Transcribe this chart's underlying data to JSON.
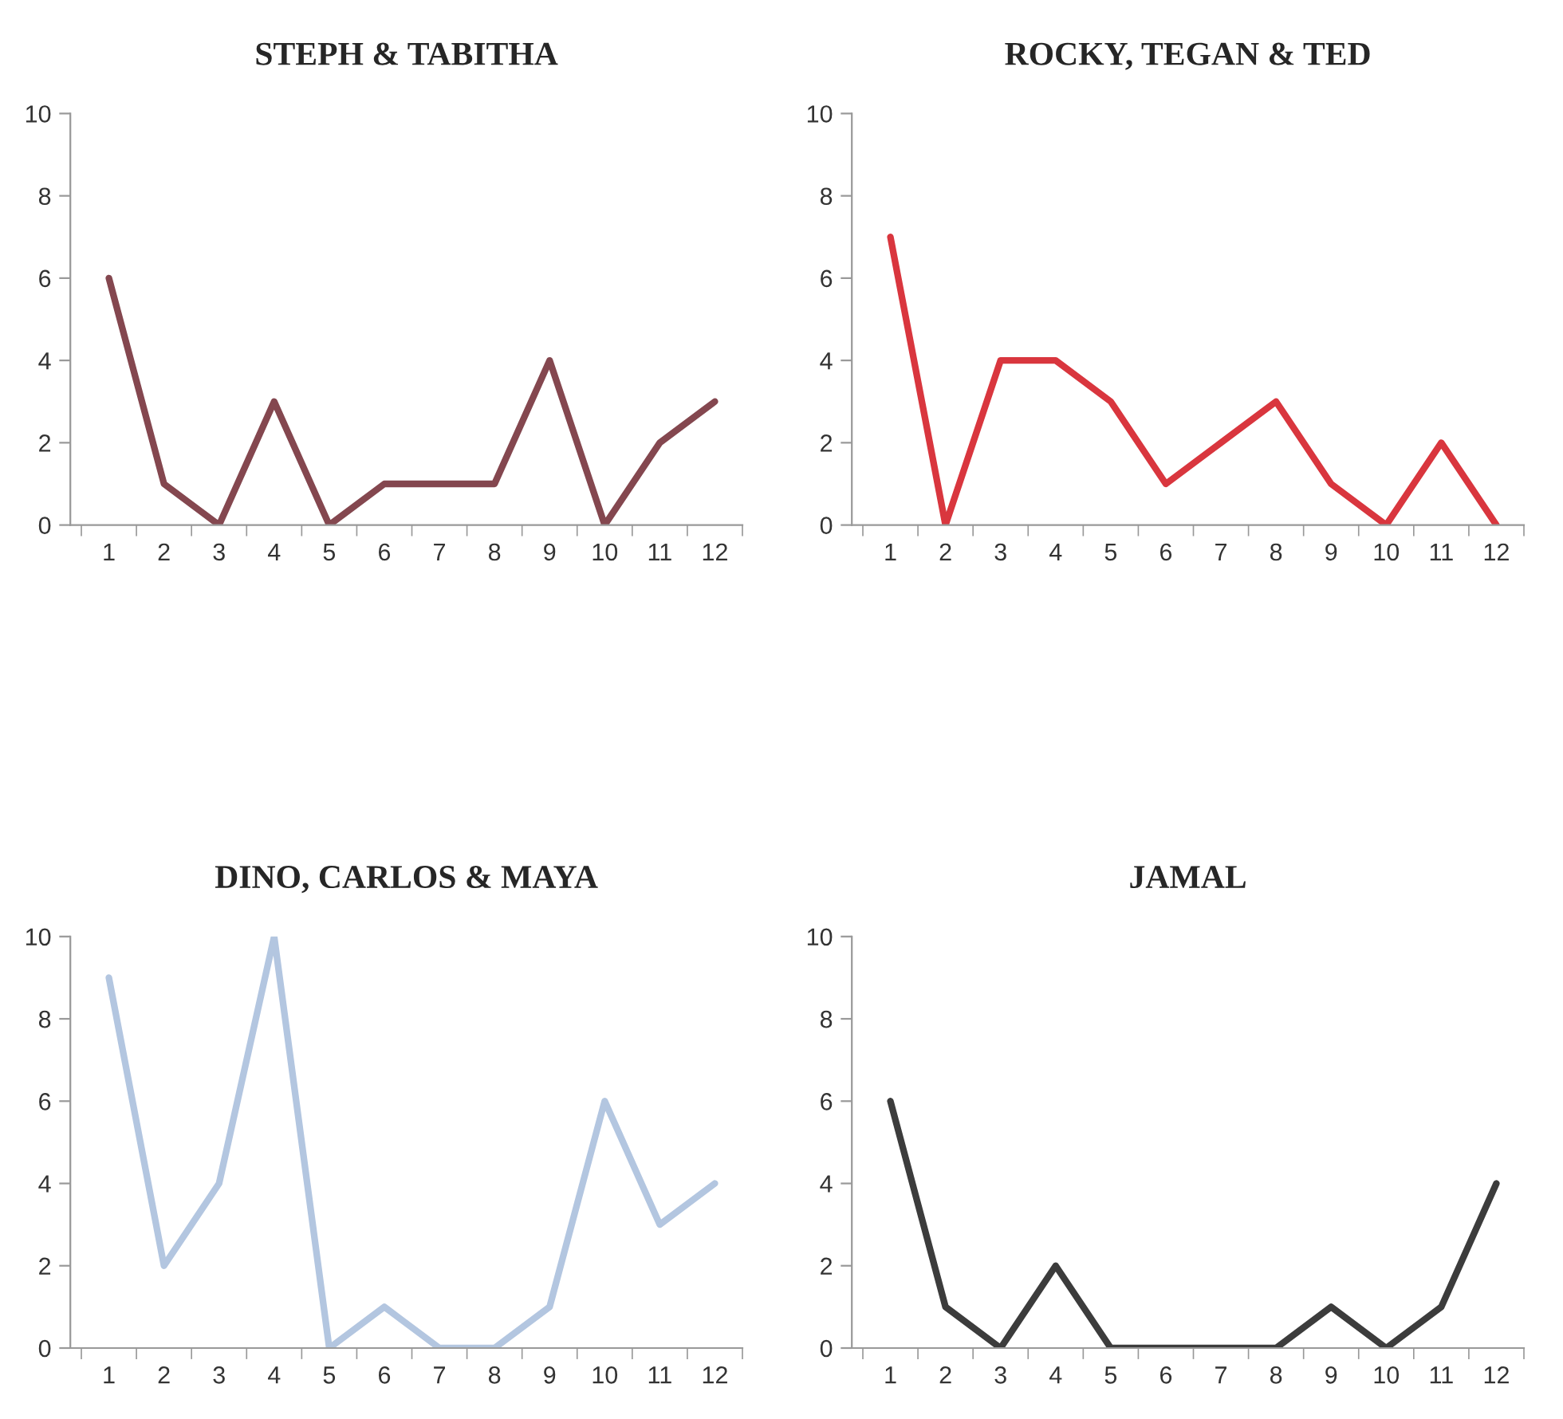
{
  "chart_data": [
    {
      "type": "line",
      "title": "STEPH & TABITHA",
      "categories": [
        "1",
        "2",
        "3",
        "4",
        "5",
        "6",
        "7",
        "8",
        "9",
        "10",
        "11",
        "12"
      ],
      "series": [
        {
          "color": "#84474f",
          "values": [
            6,
            1,
            0,
            3,
            0,
            1,
            1,
            1,
            4,
            0,
            2,
            3
          ]
        }
      ],
      "ylim": [
        0,
        10
      ],
      "yticks": [
        0,
        2,
        4,
        6,
        8,
        10
      ],
      "grid": false,
      "legend": false
    },
    {
      "type": "line",
      "title": "ROCKY, TEGAN & TED",
      "categories": [
        "1",
        "2",
        "3",
        "4",
        "5",
        "6",
        "7",
        "8",
        "9",
        "10",
        "11",
        "12"
      ],
      "series": [
        {
          "color": "#d9363e",
          "values": [
            7,
            0,
            4,
            4,
            3,
            1,
            2,
            3,
            1,
            0,
            2,
            0
          ]
        }
      ],
      "ylim": [
        0,
        10
      ],
      "yticks": [
        0,
        2,
        4,
        6,
        8,
        10
      ],
      "grid": false,
      "legend": false
    },
    {
      "type": "line",
      "title": "DINO, CARLOS & MAYA",
      "categories": [
        "1",
        "2",
        "3",
        "4",
        "5",
        "6",
        "7",
        "8",
        "9",
        "10",
        "11",
        "12"
      ],
      "series": [
        {
          "color": "#b3c6e0",
          "values": [
            9,
            2,
            4,
            10,
            0,
            1,
            0,
            0,
            1,
            6,
            3,
            4
          ]
        }
      ],
      "ylim": [
        0,
        10
      ],
      "yticks": [
        0,
        2,
        4,
        6,
        8,
        10
      ],
      "grid": false,
      "legend": false
    },
    {
      "type": "line",
      "title": "JAMAL",
      "categories": [
        "1",
        "2",
        "3",
        "4",
        "5",
        "6",
        "7",
        "8",
        "9",
        "10",
        "11",
        "12"
      ],
      "series": [
        {
          "color": "#3c3c3c",
          "values": [
            6,
            1,
            0,
            2,
            0,
            0,
            0,
            0,
            1,
            0,
            1,
            4
          ]
        }
      ],
      "ylim": [
        0,
        10
      ],
      "yticks": [
        0,
        2,
        4,
        6,
        8,
        10
      ],
      "grid": false,
      "legend": false
    }
  ]
}
